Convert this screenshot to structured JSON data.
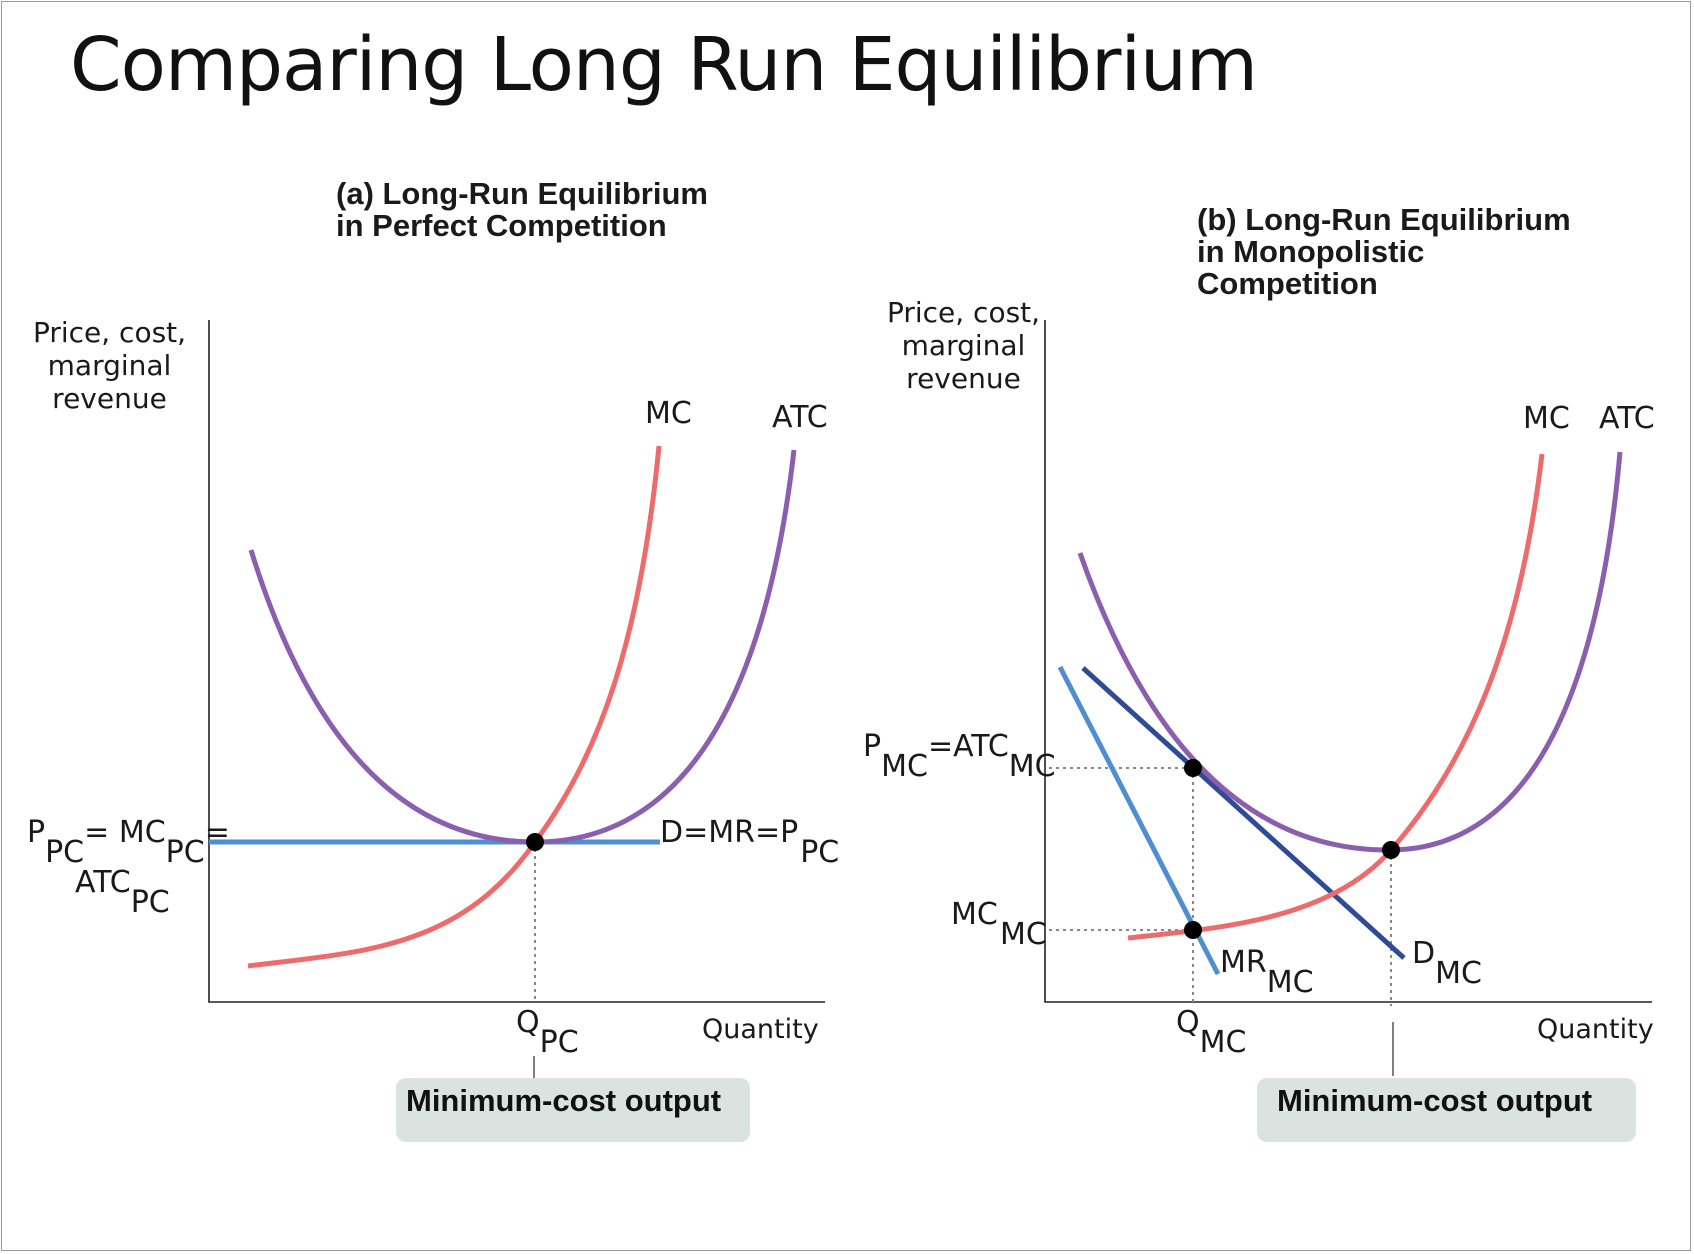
{
  "slide_title": "Comparing Long Run Equilibrium",
  "colors": {
    "mc_curve": "#ee6b6b",
    "atc_curve": "#8c5fae",
    "demand_pc": "#4f8fcf",
    "demand_mc": "#2f4b98",
    "mr_mc": "#4f8fcf",
    "point": "#000000",
    "callout_bg": "#dbe3e0"
  },
  "panel_a": {
    "title_line1": "(a) Long-Run Equilibrium",
    "title_line2": "in Perfect Competition",
    "y_axis_line1": "Price, cost,",
    "y_axis_line2": "marginal",
    "y_axis_line3": "revenue",
    "x_axis": "Quantity",
    "mc_label": "MC",
    "atc_label": "ATC",
    "demand_label": "D=MR=P",
    "demand_sub": "PC",
    "price_label": {
      "p": "P",
      "p_sub": "PC",
      "eq1": "= MC",
      "mc_sub": "PC",
      "eq2": "=",
      "atc": "ATC",
      "atc_sub": "PC"
    },
    "q_label": "Q",
    "q_sub": "PC",
    "callout": "Minimum-cost output"
  },
  "panel_b": {
    "title_line1": "(b) Long-Run Equilibrium",
    "title_line2": "in Monopolistic",
    "title_line3": "Competition",
    "y_axis_line1": "Price, cost,",
    "y_axis_line2": "marginal",
    "y_axis_line3": "revenue",
    "x_axis": "Quantity",
    "mc_label": "MC",
    "atc_label": "ATC",
    "price_label": {
      "p": "P",
      "p_sub": "MC",
      "eq": "=ATC",
      "atc_sub": "MC"
    },
    "mc_level_label": {
      "mc": "MC",
      "mc_sub": "MC"
    },
    "mr_label": "MR",
    "mr_sub": "MC",
    "demand_label": "D",
    "demand_sub": "MC",
    "q_label": "Q",
    "q_sub": "MC",
    "callout": "Minimum-cost output"
  }
}
